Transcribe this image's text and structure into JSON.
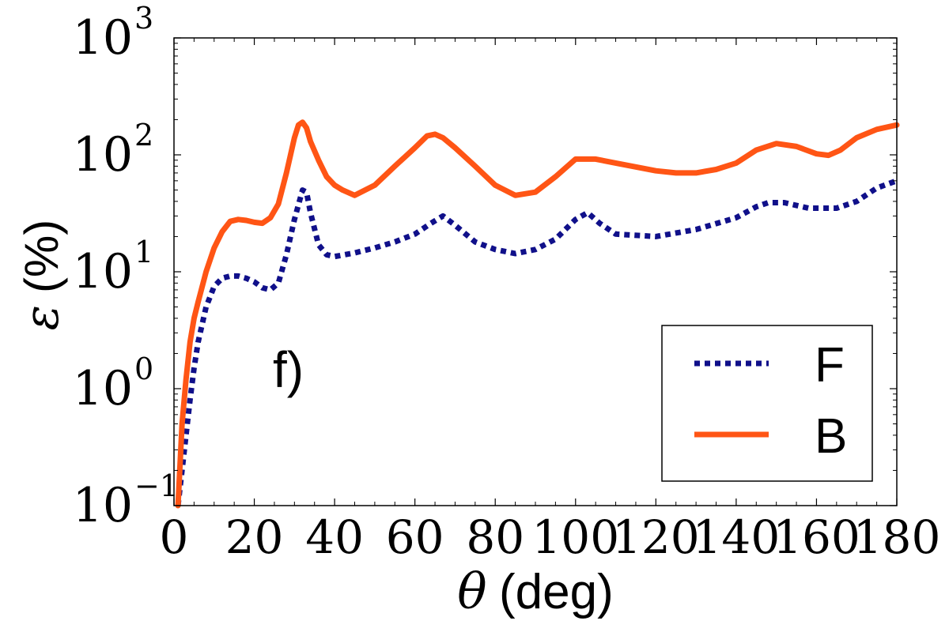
{
  "chart_data": {
    "type": "line",
    "panel_label": "f)",
    "xlabel_symbol": "θ",
    "xlabel_unit": "(deg)",
    "ylabel_symbol": "ε",
    "ylabel_unit": "(%)",
    "xlim": [
      0,
      180
    ],
    "ylim": [
      0.1,
      1000
    ],
    "yscale": "log",
    "xticks": [
      0,
      20,
      40,
      60,
      80,
      100,
      120,
      140,
      160,
      180
    ],
    "xtick_labels": [
      "0",
      "20",
      "40",
      "60",
      "80",
      "100",
      "120",
      "140",
      "160",
      "180"
    ],
    "yticks": [
      0.1,
      1,
      10,
      100,
      1000
    ],
    "ytick_bases": [
      "10",
      "10",
      "10",
      "10",
      "10"
    ],
    "ytick_exponents": [
      "−1",
      "0",
      "1",
      "2",
      "3"
    ],
    "legend_placement": "lower-right",
    "series": [
      {
        "name": "F",
        "color": "#10108a",
        "style": "dotted",
        "x": [
          1,
          2,
          3,
          4,
          5,
          6,
          8,
          10,
          12,
          14,
          16,
          18,
          20,
          22,
          24,
          26,
          28,
          30,
          32,
          33,
          34,
          36,
          38,
          40,
          45,
          50,
          55,
          60,
          64,
          67,
          70,
          75,
          80,
          85,
          90,
          95,
          100,
          103,
          106,
          110,
          120,
          130,
          140,
          145,
          148,
          152,
          158,
          165,
          170,
          175,
          180
        ],
        "y": [
          0.1,
          0.2,
          0.4,
          0.8,
          1.5,
          2.5,
          5,
          7.5,
          8.8,
          9.2,
          9.2,
          8.8,
          8.2,
          7.3,
          7,
          8,
          14,
          28,
          50,
          48,
          32,
          17,
          14,
          13.5,
          14.5,
          16,
          18,
          21,
          26,
          30,
          25,
          18,
          15.5,
          14.3,
          15.5,
          19,
          28,
          32,
          26,
          21,
          20,
          23,
          29,
          36,
          39,
          39,
          35,
          35,
          40,
          52,
          60
        ]
      },
      {
        "name": "B",
        "color": "#ff5515",
        "style": "solid",
        "x": [
          1,
          2,
          3,
          4,
          5,
          6,
          8,
          10,
          12,
          14,
          16,
          18,
          20,
          22,
          24,
          26,
          28,
          30,
          31,
          32,
          33,
          34,
          36,
          38,
          40,
          42,
          45,
          50,
          55,
          60,
          63,
          65,
          67,
          70,
          75,
          80,
          85,
          90,
          95,
          100,
          105,
          110,
          120,
          125,
          130,
          135,
          140,
          145,
          150,
          155,
          160,
          163,
          166,
          170,
          175,
          180
        ],
        "y": [
          0.1,
          0.5,
          1.2,
          2.5,
          4,
          5.5,
          10,
          16,
          22,
          27,
          28,
          27.5,
          26.5,
          26,
          29,
          38,
          70,
          140,
          180,
          190,
          170,
          130,
          90,
          65,
          55,
          50,
          45,
          55,
          80,
          115,
          145,
          150,
          140,
          115,
          80,
          55,
          45,
          48,
          65,
          92,
          92,
          85,
          73,
          70,
          70,
          75,
          85,
          110,
          125,
          118,
          102,
          99,
          110,
          140,
          165,
          180
        ]
      }
    ]
  }
}
